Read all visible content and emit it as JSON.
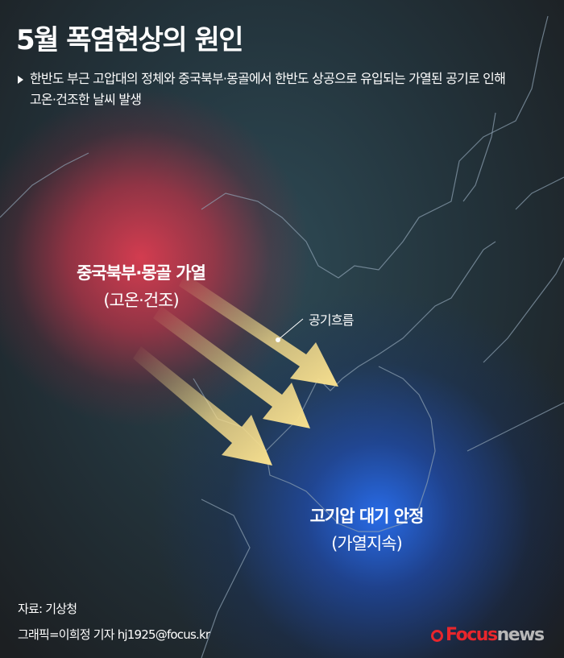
{
  "header": {
    "title": "5월 폭염현상의 원인",
    "description_line1": "한반도 부근 고압대의 정체와 중국북부·몽골에서 한반도 상공으로 유입되는 가열된 공기로 인해",
    "description_line2": "고온·건조한 날씨 발생"
  },
  "map": {
    "hot_region": {
      "title": "중국북부·몽골 가열",
      "subtitle": "(고온·건조)",
      "color": "#d23c50"
    },
    "high_pressure": {
      "title": "고기압 대기 안정",
      "subtitle": "(가열지속)",
      "color": "#2a6ef0"
    },
    "airflow_label": "공기흐름",
    "arrow_color": "#f3d98a"
  },
  "footer": {
    "source": "자료: 기상청",
    "credit": "그래픽=이희정 기자 hj1925@focus.kr",
    "logo": {
      "brand_red": "Focus",
      "brand_gray": "news",
      "red": "#e8262c"
    }
  }
}
